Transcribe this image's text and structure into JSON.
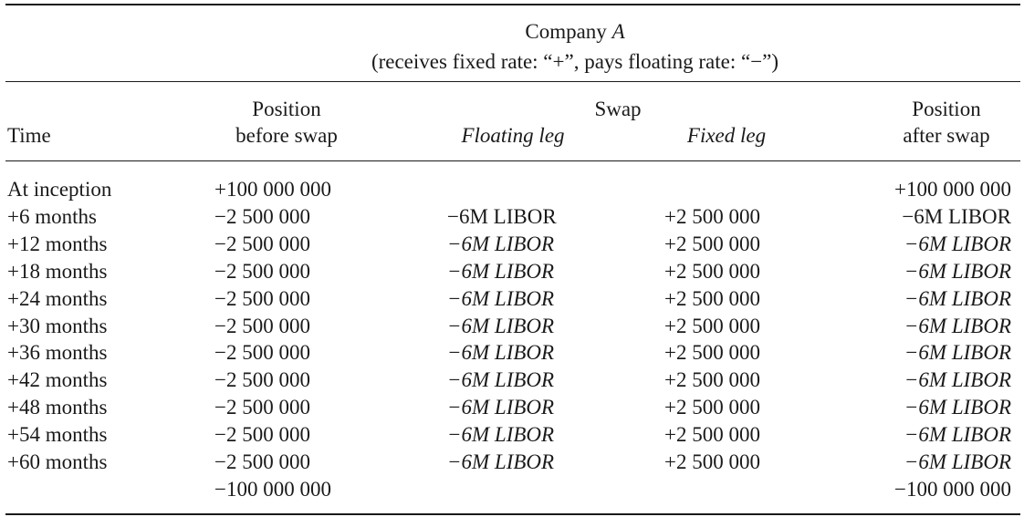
{
  "header": {
    "company_prefix": "Company ",
    "company_letter": "A",
    "subtitle": "(receives fixed rate: “+”, pays floating rate: “−”)"
  },
  "columns": {
    "time": "Time",
    "position_before_line1": "Position",
    "position_before_line2": "before swap",
    "swap": "Swap",
    "floating_leg": "Floating leg",
    "fixed_leg": "Fixed leg",
    "position_after_line1": "Position",
    "position_after_line2": "after swap"
  },
  "rows": [
    {
      "time": "At inception",
      "before": "+100 000 000",
      "floating": "",
      "fixed": "",
      "after": "+100 000 000",
      "floating_italic": false,
      "after_italic": false
    },
    {
      "time": "+6 months",
      "before": "−2 500 000",
      "floating": "−6M LIBOR",
      "fixed": "+2 500 000",
      "after": "−6M LIBOR",
      "floating_italic": false,
      "after_italic": false
    },
    {
      "time": "+12 months",
      "before": "−2 500 000",
      "floating": "−6M LIBOR",
      "fixed": "+2 500 000",
      "after": "−6M LIBOR",
      "floating_italic": true,
      "after_italic": true
    },
    {
      "time": "+18 months",
      "before": "−2 500 000",
      "floating": "−6M LIBOR",
      "fixed": "+2 500 000",
      "after": "−6M LIBOR",
      "floating_italic": true,
      "after_italic": true
    },
    {
      "time": "+24 months",
      "before": "−2 500 000",
      "floating": "−6M LIBOR",
      "fixed": "+2 500 000",
      "after": "−6M LIBOR",
      "floating_italic": true,
      "after_italic": true
    },
    {
      "time": "+30 months",
      "before": "−2 500 000",
      "floating": "−6M LIBOR",
      "fixed": "+2 500 000",
      "after": "−6M LIBOR",
      "floating_italic": true,
      "after_italic": true
    },
    {
      "time": "+36 months",
      "before": "−2 500 000",
      "floating": "−6M LIBOR",
      "fixed": "+2 500 000",
      "after": "−6M LIBOR",
      "floating_italic": true,
      "after_italic": true
    },
    {
      "time": "+42 months",
      "before": "−2 500 000",
      "floating": "−6M LIBOR",
      "fixed": "+2 500 000",
      "after": "−6M LIBOR",
      "floating_italic": true,
      "after_italic": true
    },
    {
      "time": "+48 months",
      "before": "−2 500 000",
      "floating": "−6M LIBOR",
      "fixed": "+2 500 000",
      "after": "−6M LIBOR",
      "floating_italic": true,
      "after_italic": true
    },
    {
      "time": "+54 months",
      "before": "−2 500 000",
      "floating": "−6M LIBOR",
      "fixed": "+2 500 000",
      "after": "−6M LIBOR",
      "floating_italic": true,
      "after_italic": true
    },
    {
      "time": "+60 months",
      "before": "−2 500 000",
      "floating": "−6M LIBOR",
      "fixed": "+2 500 000",
      "after": "−6M LIBOR",
      "floating_italic": true,
      "after_italic": true
    },
    {
      "time": "",
      "before": "−100 000 000",
      "floating": "",
      "fixed": "",
      "after": "−100 000 000",
      "floating_italic": false,
      "after_italic": false
    }
  ]
}
